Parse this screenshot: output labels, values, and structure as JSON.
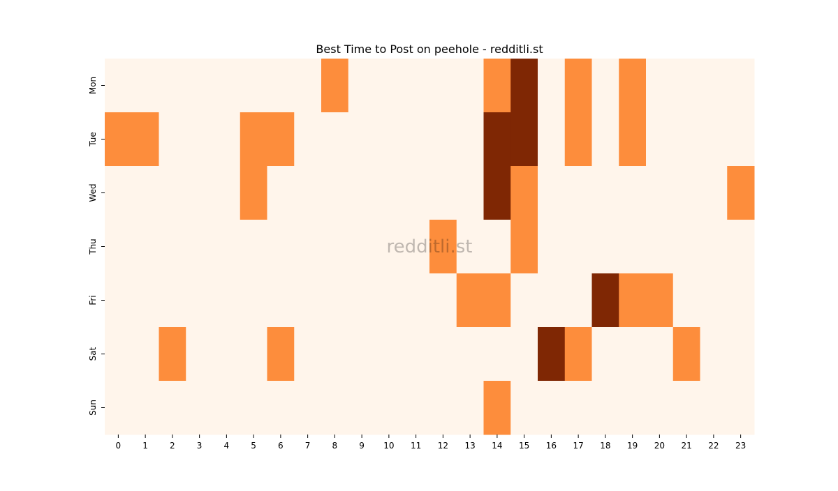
{
  "chart_data": {
    "type": "heatmap",
    "title": "Best Time to Post on peehole - redditli.st",
    "watermark": "redditli.st",
    "x_categories": [
      "0",
      "1",
      "2",
      "3",
      "4",
      "5",
      "6",
      "7",
      "8",
      "9",
      "10",
      "11",
      "12",
      "13",
      "14",
      "15",
      "16",
      "17",
      "18",
      "19",
      "20",
      "21",
      "22",
      "23"
    ],
    "y_categories": [
      "Mon",
      "Tue",
      "Wed",
      "Thu",
      "Fri",
      "Sat",
      "Sun"
    ],
    "values": [
      [
        0,
        0,
        0,
        0,
        0,
        0,
        0,
        0,
        1,
        0,
        0,
        0,
        0,
        0,
        1,
        2,
        0,
        1,
        0,
        1,
        0,
        0,
        0,
        0
      ],
      [
        1,
        1,
        0,
        0,
        0,
        1,
        1,
        0,
        0,
        0,
        0,
        0,
        0,
        0,
        2,
        2,
        0,
        1,
        0,
        1,
        0,
        0,
        0,
        0
      ],
      [
        0,
        0,
        0,
        0,
        0,
        1,
        0,
        0,
        0,
        0,
        0,
        0,
        0,
        0,
        2,
        1,
        0,
        0,
        0,
        0,
        0,
        0,
        0,
        1
      ],
      [
        0,
        0,
        0,
        0,
        0,
        0,
        0,
        0,
        0,
        0,
        0,
        0,
        1,
        0,
        0,
        1,
        0,
        0,
        0,
        0,
        0,
        0,
        0,
        0
      ],
      [
        0,
        0,
        0,
        0,
        0,
        0,
        0,
        0,
        0,
        0,
        0,
        0,
        0,
        1,
        1,
        0,
        0,
        0,
        2,
        1,
        1,
        0,
        0,
        0
      ],
      [
        0,
        0,
        1,
        0,
        0,
        0,
        1,
        0,
        0,
        0,
        0,
        0,
        0,
        0,
        0,
        0,
        2,
        1,
        0,
        0,
        0,
        1,
        0,
        0
      ],
      [
        0,
        0,
        0,
        0,
        0,
        0,
        0,
        0,
        0,
        0,
        0,
        0,
        0,
        0,
        1,
        0,
        0,
        0,
        0,
        0,
        0,
        0,
        0,
        0
      ]
    ],
    "zlim": [
      0,
      2
    ],
    "colormap": [
      "#fff5eb",
      "#fd8d3c",
      "#7f2704"
    ]
  }
}
